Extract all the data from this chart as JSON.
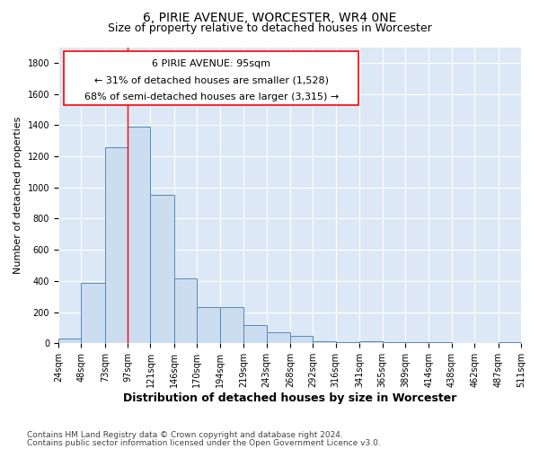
{
  "title": "6, PIRIE AVENUE, WORCESTER, WR4 0NE",
  "subtitle": "Size of property relative to detached houses in Worcester",
  "xlabel": "Distribution of detached houses by size in Worcester",
  "ylabel": "Number of detached properties",
  "footnote1": "Contains HM Land Registry data © Crown copyright and database right 2024.",
  "footnote2": "Contains public sector information licensed under the Open Government Licence v3.0.",
  "annotation_title": "6 PIRIE AVENUE: 95sqm",
  "annotation_line2": "← 31% of detached houses are smaller (1,528)",
  "annotation_line3": "68% of semi-detached houses are larger (3,315) →",
  "bar_edges": [
    24,
    48,
    73,
    97,
    121,
    146,
    170,
    194,
    219,
    243,
    268,
    292,
    316,
    341,
    365,
    389,
    414,
    438,
    462,
    487,
    511
  ],
  "bar_values": [
    30,
    390,
    1260,
    1390,
    950,
    415,
    235,
    235,
    115,
    70,
    50,
    15,
    10,
    15,
    10,
    10,
    10,
    0,
    0,
    10,
    0
  ],
  "bar_color": "#ccddf0",
  "bar_edge_color": "#5588bb",
  "red_line_x": 97,
  "ylim": [
    0,
    1900
  ],
  "yticks": [
    0,
    200,
    400,
    600,
    800,
    1000,
    1200,
    1400,
    1600,
    1800
  ],
  "xtick_labels": [
    "24sqm",
    "48sqm",
    "73sqm",
    "97sqm",
    "121sqm",
    "146sqm",
    "170sqm",
    "194sqm",
    "219sqm",
    "243sqm",
    "268sqm",
    "292sqm",
    "316sqm",
    "341sqm",
    "365sqm",
    "389sqm",
    "414sqm",
    "438sqm",
    "462sqm",
    "487sqm",
    "511sqm"
  ],
  "grid_color": "#ffffff",
  "bg_color": "#dce8f5",
  "title_fontsize": 10,
  "subtitle_fontsize": 9,
  "xlabel_fontsize": 9,
  "ylabel_fontsize": 8,
  "tick_fontsize": 7,
  "annotation_fontsize": 8,
  "footnote_fontsize": 6.5
}
